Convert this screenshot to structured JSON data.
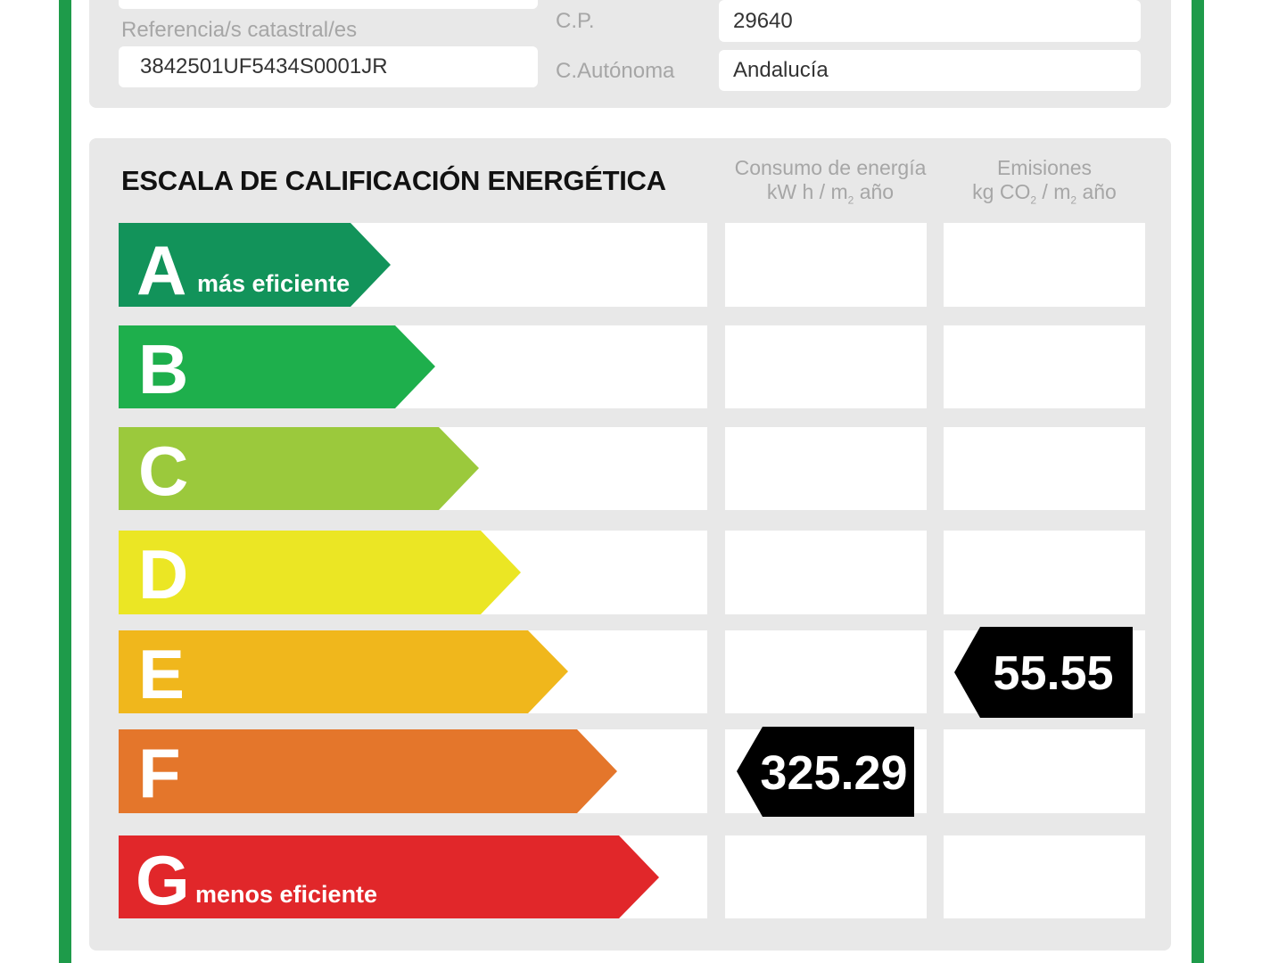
{
  "info": {
    "referencia_label": "Referencia/s catastral/es",
    "referencia_value": "3842501UF5434S0001JR",
    "cp_label": "C.P.",
    "cp_value": "29640",
    "autonoma_label": "C.Autónoma",
    "autonoma_value": "Andalucía"
  },
  "scale": {
    "title": "ESCALA DE CALIFICACIÓN ENERGÉTICA",
    "consumo_header_line1": "Consumo de energía",
    "consumo_header_line2_a": "kW h / m",
    "consumo_header_line2_sub": "2",
    "consumo_header_line2_b": " año",
    "emisiones_header_line1": "Emisiones",
    "emisiones_header_line2_a": "kg CO",
    "emisiones_header_line2_sub1": "2",
    "emisiones_header_line2_b": " / m",
    "emisiones_header_line2_sub2": "2",
    "emisiones_header_line2_c": " año",
    "rows": [
      {
        "letter": "A",
        "sub": "más eficiente",
        "color": "#12935a"
      },
      {
        "letter": "B",
        "sub": "",
        "color": "#1eaf4c"
      },
      {
        "letter": "C",
        "sub": "",
        "color": "#9bc93c"
      },
      {
        "letter": "D",
        "sub": "",
        "color": "#ebe624"
      },
      {
        "letter": "E",
        "sub": "",
        "color": "#f0b71c"
      },
      {
        "letter": "F",
        "sub": "",
        "color": "#e4762b"
      },
      {
        "letter": "G",
        "sub": "menos eficiente",
        "color": "#e1272a"
      }
    ],
    "consumo": {
      "value": "325.29",
      "rating": "F"
    },
    "emisiones": {
      "value": "55.55",
      "rating": "E"
    }
  }
}
